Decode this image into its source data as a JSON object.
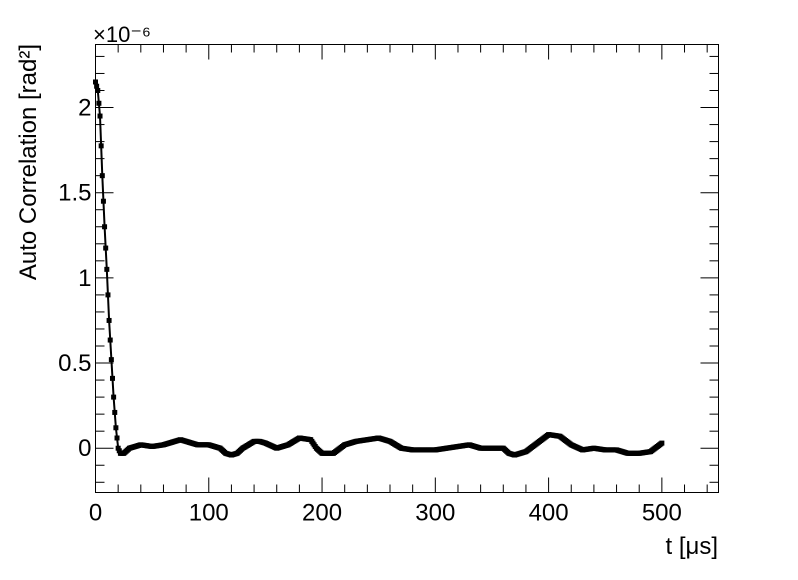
{
  "chart_data": {
    "type": "scatter",
    "title": "",
    "xlabel": "t [μs]",
    "ylabel": "Auto Correlation [rad²]",
    "y_exponent_label": "×10⁻⁶",
    "xlim": [
      0,
      550
    ],
    "ylim": [
      -0.26,
      2.37
    ],
    "x_unit": "μs",
    "y_multiplier": 1e-06,
    "x_ticks": [
      0,
      100,
      200,
      300,
      400,
      500
    ],
    "x_tick_labels": [
      "0",
      "100",
      "200",
      "300",
      "400",
      "500"
    ],
    "y_ticks": [
      0,
      0.5,
      1,
      1.5,
      2
    ],
    "y_tick_labels": [
      "0",
      "0.5",
      "1",
      "1.5",
      "2"
    ],
    "grid": false,
    "legend": "none",
    "marker": "square",
    "color": "#000000",
    "series": [
      {
        "x": [
          0,
          2,
          4,
          6,
          8,
          10,
          12,
          14,
          16,
          18,
          20,
          22,
          25,
          30,
          40,
          50,
          60,
          70,
          75,
          80,
          90,
          100,
          110,
          115,
          120,
          125,
          130,
          140,
          145,
          150,
          160,
          170,
          180,
          190,
          195,
          200,
          210,
          220,
          230,
          240,
          250,
          260,
          270,
          280,
          290,
          300,
          310,
          320,
          330,
          340,
          350,
          360,
          365,
          370,
          380,
          390,
          400,
          410,
          420,
          430,
          440,
          450,
          460,
          470,
          480,
          490,
          500
        ],
        "y": [
          2.15,
          2.1,
          1.95,
          1.6,
          1.3,
          1.05,
          0.75,
          0.52,
          0.3,
          0.12,
          0.0,
          -0.03,
          -0.03,
          0.0,
          0.02,
          0.01,
          0.02,
          0.04,
          0.05,
          0.04,
          0.02,
          0.02,
          0.0,
          -0.03,
          -0.04,
          -0.03,
          0.0,
          0.04,
          0.04,
          0.03,
          0.0,
          0.02,
          0.06,
          0.05,
          0.0,
          -0.03,
          -0.03,
          0.02,
          0.04,
          0.05,
          0.06,
          0.04,
          0.0,
          -0.01,
          -0.01,
          -0.01,
          0.0,
          0.01,
          0.02,
          0.0,
          0.0,
          0.0,
          -0.03,
          -0.04,
          -0.02,
          0.03,
          0.08,
          0.07,
          0.02,
          -0.01,
          0.0,
          -0.01,
          -0.01,
          -0.03,
          -0.03,
          -0.02,
          0.03
        ]
      }
    ]
  }
}
